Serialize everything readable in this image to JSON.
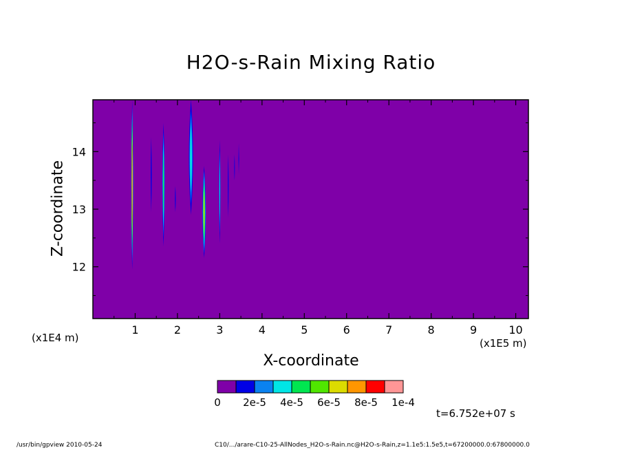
{
  "chart_data": {
    "type": "heatmap",
    "title": "H2O-s-Rain Mixing Ratio",
    "xlabel": "X-coordinate",
    "ylabel": "Z-coordinate",
    "x_scale_label": "(x1E4 m)",
    "y_scale_label": "(x1E5 m)",
    "xlim": [
      0,
      10.3
    ],
    "ylim": [
      11.1,
      14.9
    ],
    "x_ticks": [
      "1",
      "2",
      "3",
      "4",
      "5",
      "6",
      "7",
      "8",
      "9",
      "10"
    ],
    "y_ticks": [
      "12",
      "13",
      "14"
    ],
    "background_level": 0,
    "colorbar": {
      "colors": [
        "#7f00a8",
        "#0000e6",
        "#0a82f0",
        "#00e6e6",
        "#00e650",
        "#50e600",
        "#dcdc00",
        "#ff9600",
        "#ff0000",
        "#ff9696"
      ],
      "labels": [
        "0",
        "2e-5",
        "4e-5",
        "6e-5",
        "8e-5",
        "1e-4"
      ]
    },
    "features": [
      {
        "x": 0.93,
        "z_bottom": 11.95,
        "z_top": 14.9,
        "width": 0.1,
        "max_level": 9
      },
      {
        "x": 1.38,
        "z_bottom": 12.95,
        "z_top": 14.25,
        "width": 0.05,
        "max_level": 1
      },
      {
        "x": 1.67,
        "z_bottom": 12.35,
        "z_top": 14.5,
        "width": 0.12,
        "max_level": 4
      },
      {
        "x": 1.95,
        "z_bottom": 12.95,
        "z_top": 13.4,
        "width": 0.04,
        "max_level": 1
      },
      {
        "x": 2.32,
        "z_bottom": 12.9,
        "z_top": 14.9,
        "width": 0.2,
        "max_level": 3
      },
      {
        "x": 2.63,
        "z_bottom": 12.15,
        "z_top": 13.75,
        "width": 0.16,
        "max_level": 6
      },
      {
        "x": 3.0,
        "z_bottom": 12.4,
        "z_top": 14.2,
        "width": 0.07,
        "max_level": 3
      },
      {
        "x": 3.2,
        "z_bottom": 12.85,
        "z_top": 13.95,
        "width": 0.04,
        "max_level": 1
      },
      {
        "x": 3.35,
        "z_bottom": 13.5,
        "z_top": 13.95,
        "width": 0.03,
        "max_level": 1
      },
      {
        "x": 3.45,
        "z_bottom": 13.6,
        "z_top": 14.15,
        "width": 0.03,
        "max_level": 1
      }
    ]
  },
  "time_label": "t=6.752e+07 s",
  "footer": {
    "left": "/usr/bin/gpview 2010-05-24",
    "right": "C10/.../arare-C10-25-AllNodes_H2O-s-Rain.nc@H2O-s-Rain,z=1.1e5:1.5e5,t=67200000.0:67800000.0"
  }
}
